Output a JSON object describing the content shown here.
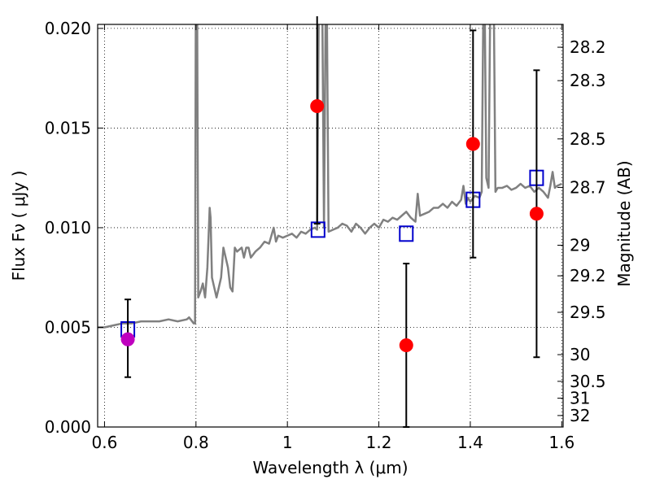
{
  "chart_data": {
    "type": "scatter",
    "xlabel": "Wavelength  λ (μm)",
    "ylabel": "Flux  Fν  ( μJy )",
    "y2label": "Magnitude (AB)",
    "xlim": [
      0.585,
      1.603
    ],
    "ylim": [
      0.0,
      0.0202
    ],
    "grid": true,
    "x_ticks": [
      0.6,
      0.8,
      1.0,
      1.2,
      1.4,
      1.6
    ],
    "x_tick_labels": [
      "0.6",
      "0.8",
      "1",
      "1.2",
      "1.4",
      "1.6"
    ],
    "y_ticks": [
      0.0,
      0.005,
      0.01,
      0.015,
      0.02
    ],
    "y_tick_labels": [
      "0.000",
      "0.005",
      "0.010",
      "0.015",
      "0.020"
    ],
    "mag_ticks": [
      28.2,
      28.3,
      28.5,
      28.7,
      29,
      29.2,
      29.5,
      30,
      30.5,
      31,
      32
    ],
    "mag_tick_labels": [
      "28.2",
      "28.3",
      "28.5",
      "28.7",
      "29",
      "29.2",
      "29.5",
      "30",
      "30.5",
      "31",
      "32"
    ],
    "series": [
      {
        "kind": "line",
        "color": "#808080",
        "x": [
          0.585,
          0.6,
          0.62,
          0.64,
          0.66,
          0.68,
          0.7,
          0.72,
          0.74,
          0.76,
          0.78,
          0.785,
          0.795,
          0.798,
          0.8,
          0.802,
          0.805,
          0.81,
          0.815,
          0.82,
          0.825,
          0.83,
          0.832,
          0.835,
          0.84,
          0.845,
          0.85,
          0.855,
          0.86,
          0.865,
          0.87,
          0.875,
          0.88,
          0.885,
          0.89,
          0.9,
          0.905,
          0.91,
          0.915,
          0.92,
          0.93,
          0.94,
          0.95,
          0.96,
          0.97,
          0.975,
          0.98,
          0.99,
          1.0,
          1.01,
          1.02,
          1.03,
          1.04,
          1.05,
          1.06,
          1.065,
          1.07,
          1.075,
          1.08,
          1.085,
          1.09,
          1.1,
          1.11,
          1.12,
          1.13,
          1.14,
          1.15,
          1.16,
          1.17,
          1.18,
          1.19,
          1.2,
          1.21,
          1.22,
          1.23,
          1.24,
          1.25,
          1.26,
          1.27,
          1.28,
          1.285,
          1.29,
          1.3,
          1.31,
          1.32,
          1.33,
          1.34,
          1.35,
          1.36,
          1.37,
          1.38,
          1.385,
          1.39,
          1.395,
          1.4,
          1.41,
          1.42,
          1.425,
          1.43,
          1.435,
          1.44,
          1.445,
          1.45,
          1.455,
          1.46,
          1.47,
          1.48,
          1.49,
          1.5,
          1.51,
          1.52,
          1.53,
          1.54,
          1.55,
          1.56,
          1.57,
          1.575,
          1.58,
          1.585,
          1.59,
          1.6
        ],
        "y": [
          0.005,
          0.005,
          0.0051,
          0.0052,
          0.0052,
          0.0053,
          0.0053,
          0.0053,
          0.0054,
          0.0053,
          0.0054,
          0.0055,
          0.0052,
          0.0052,
          0.025,
          0.025,
          0.0065,
          0.0068,
          0.0072,
          0.0065,
          0.008,
          0.011,
          0.0105,
          0.0075,
          0.007,
          0.0065,
          0.007,
          0.0075,
          0.009,
          0.0085,
          0.008,
          0.007,
          0.0068,
          0.009,
          0.0088,
          0.009,
          0.0085,
          0.009,
          0.009,
          0.0085,
          0.0088,
          0.009,
          0.0093,
          0.0092,
          0.01,
          0.0093,
          0.0096,
          0.0095,
          0.0096,
          0.0097,
          0.0095,
          0.0098,
          0.0097,
          0.0099,
          0.01,
          0.0099,
          0.025,
          0.025,
          0.01,
          0.025,
          0.0098,
          0.0099,
          0.01,
          0.0102,
          0.0101,
          0.0098,
          0.0102,
          0.01,
          0.0097,
          0.01,
          0.0102,
          0.01,
          0.0104,
          0.0103,
          0.0105,
          0.0104,
          0.0106,
          0.0108,
          0.0105,
          0.0103,
          0.0117,
          0.0106,
          0.0107,
          0.0108,
          0.011,
          0.011,
          0.0112,
          0.011,
          0.0113,
          0.0111,
          0.0114,
          0.0121,
          0.0112,
          0.0115,
          0.0113,
          0.0116,
          0.0115,
          0.0118,
          0.025,
          0.0125,
          0.012,
          0.025,
          0.025,
          0.0118,
          0.012,
          0.012,
          0.0121,
          0.0119,
          0.012,
          0.0122,
          0.012,
          0.0121,
          0.0118,
          0.012,
          0.0118,
          0.0115,
          0.0121,
          0.0128,
          0.012,
          0.0121,
          0.0122
        ]
      },
      {
        "kind": "model-photometry",
        "marker": "open-square",
        "color": "#0000cc",
        "x": [
          0.651,
          1.067,
          1.26,
          1.406,
          1.545
        ],
        "y": [
          0.0049,
          0.0099,
          0.0097,
          0.0114,
          0.0125
        ]
      },
      {
        "kind": "observed-photometry",
        "marker": "filled-circle",
        "color": "#ff0000",
        "x": [
          1.065,
          1.26,
          1.406,
          1.545
        ],
        "y": [
          0.0161,
          0.0041,
          0.0142,
          0.0107
        ],
        "yerr_low": [
          0.0059,
          0.0041,
          0.0057,
          0.0072
        ],
        "yerr_high": [
          0.0059,
          0.0041,
          0.0057,
          0.0072
        ]
      },
      {
        "kind": "observed-photometry",
        "marker": "filled-circle",
        "color": "#bf00bf",
        "x": [
          0.651
        ],
        "y": [
          0.0044
        ],
        "yerr_low": [
          0.0019
        ],
        "yerr_high": [
          0.002
        ]
      }
    ]
  }
}
